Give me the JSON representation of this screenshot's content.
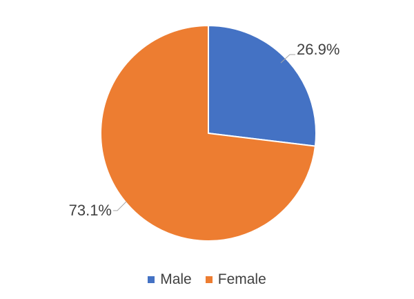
{
  "chart_data": {
    "type": "pie",
    "categories": [
      "Male",
      "Female"
    ],
    "values": [
      26.9,
      73.1
    ],
    "labels": [
      "26.9%",
      "73.1%"
    ],
    "colors": [
      "#4472C4",
      "#ED7D31"
    ],
    "legend_position": "bottom",
    "title": ""
  }
}
